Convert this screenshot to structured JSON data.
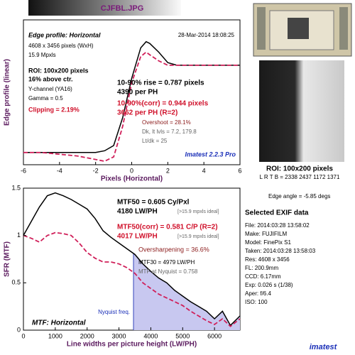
{
  "file_title": "CJFBL.JPG",
  "roi": {
    "title": "ROI: 100x200 pixels",
    "lrtb": "L R T B = 2338 2437 1172 1371"
  },
  "edge_angle": "Edge angle = -5.85 degs",
  "exif": {
    "title": "Selected EXIF data",
    "lines": [
      "File:   2014:03:28 13:58:02",
      "Make:  FUJIFILM",
      "Model:  FinePix S1",
      "Taken:  2014:03:28 13:58:03",
      "Res:    4608 x 3456",
      "FL:      200.9mm",
      "CCD:    6.17mm",
      "Exp:    0.026 s  (1/38)",
      "Aper:   f/6.4",
      "ISO:    100"
    ]
  },
  "logo": "imatest",
  "chart_data": [
    {
      "type": "line",
      "x_label": "Pixels (Horizontal)",
      "y_label": "Edge profile (linear)",
      "annotations": [
        "Edge profile: Horizontal",
        "28-Mar-2014 18:08:25",
        "4608 x 3456 pixels (WxH)",
        "15.9 Mpxls",
        "ROI: 100x200 pixels",
        "16% above ctr.",
        "Y-channel (YA16)",
        "Gamma = 0.5",
        "Clipping =  2.19%",
        "10-90% rise = 0.787 pixels",
        "4390 per PH",
        "10-90%(corr) = 0.944 pixels",
        "3662 per PH  (R=2)",
        "Overshoot = 28.1%",
        "Dk, lt lvls = 7.2, 179.8",
        "Lt/dk = 25",
        "Imatest 2.2.3 Pro"
      ],
      "x": [
        -6,
        -5,
        -4,
        -3,
        -2,
        -1.5,
        -1,
        -0.5,
        0,
        0.5,
        0.8,
        1,
        1.5,
        2,
        2.5,
        3,
        4,
        5,
        6
      ],
      "series": [
        {
          "color": "#000000",
          "dash": false,
          "values": [
            0,
            0,
            0,
            0,
            0,
            0.02,
            0.08,
            0.4,
            0.85,
            1.2,
            1.27,
            1.25,
            1.15,
            1.03,
            1.0,
            1.0,
            1.0,
            1.0,
            1.0
          ]
        },
        {
          "color": "#d0205a",
          "dash": true,
          "values": [
            0,
            0,
            -0.02,
            -0.04,
            -0.08,
            -0.1,
            -0.05,
            0.3,
            0.8,
            1.1,
            1.15,
            1.12,
            1.05,
            1.0,
            1.0,
            1.0,
            1.0,
            1.0,
            1.0
          ]
        }
      ],
      "xlim": [
        -6,
        6
      ],
      "xticks": [
        -6,
        -4,
        -2,
        0,
        2,
        4,
        6
      ],
      "ylim": [
        -0.14,
        1.52
      ],
      "yticks": []
    },
    {
      "type": "line",
      "x_label": "Line widths per picture height (LW/PH)",
      "y_label": "SFR (MTF)",
      "annotations": [
        "MTF50 = 0.605 Cy/Pxl",
        "4180 LW/PH",
        "[>15.9 mpxls ideal]",
        "MTF50(corr) = 0.581 C/P  (R=2)",
        "4017 LW/PH",
        "[>15.9 mpxls ideal]",
        "Oversharpening = 36.6%",
        "MTF30 = 4979 LW/PH",
        "MTF at Nyquist = 0.758",
        "MTF: Horizontal"
      ],
      "nyquist": 3456,
      "nyquist_label": "Nyquist freq.",
      "shade_color": "#c8c8f0",
      "x": [
        0,
        250,
        500,
        750,
        1000,
        1250,
        1500,
        1750,
        2000,
        2250,
        2500,
        2750,
        3000,
        3250,
        3500,
        3750,
        4000,
        4250,
        4500,
        4750,
        5000,
        5250,
        5500,
        5750,
        6000,
        6250,
        6500,
        6800
      ],
      "series": [
        {
          "color": "#000000",
          "dash": false,
          "values": [
            1.0,
            1.15,
            1.3,
            1.42,
            1.45,
            1.42,
            1.38,
            1.33,
            1.28,
            1.18,
            1.05,
            0.98,
            0.92,
            0.86,
            0.8,
            0.7,
            0.62,
            0.55,
            0.5,
            0.42,
            0.36,
            0.3,
            0.25,
            0.2,
            0.12,
            0.2,
            0.05,
            0.15
          ]
        },
        {
          "color": "#d0205a",
          "dash": true,
          "values": [
            1.0,
            0.97,
            0.93,
            1.0,
            1.03,
            1.02,
            1.0,
            0.92,
            0.82,
            0.76,
            0.72,
            0.72,
            0.7,
            0.66,
            0.6,
            0.5,
            0.44,
            0.38,
            0.34,
            0.3,
            0.26,
            0.2,
            0.15,
            0.1,
            0.06,
            0.12,
            0.04,
            0.12
          ]
        }
      ],
      "xlim": [
        0,
        6800
      ],
      "xticks": [
        0,
        1000,
        2000,
        3000,
        4000,
        5000,
        6000
      ],
      "ylim": [
        0,
        1.5
      ],
      "yticks": [
        0,
        0.5,
        1,
        1.5
      ]
    }
  ]
}
